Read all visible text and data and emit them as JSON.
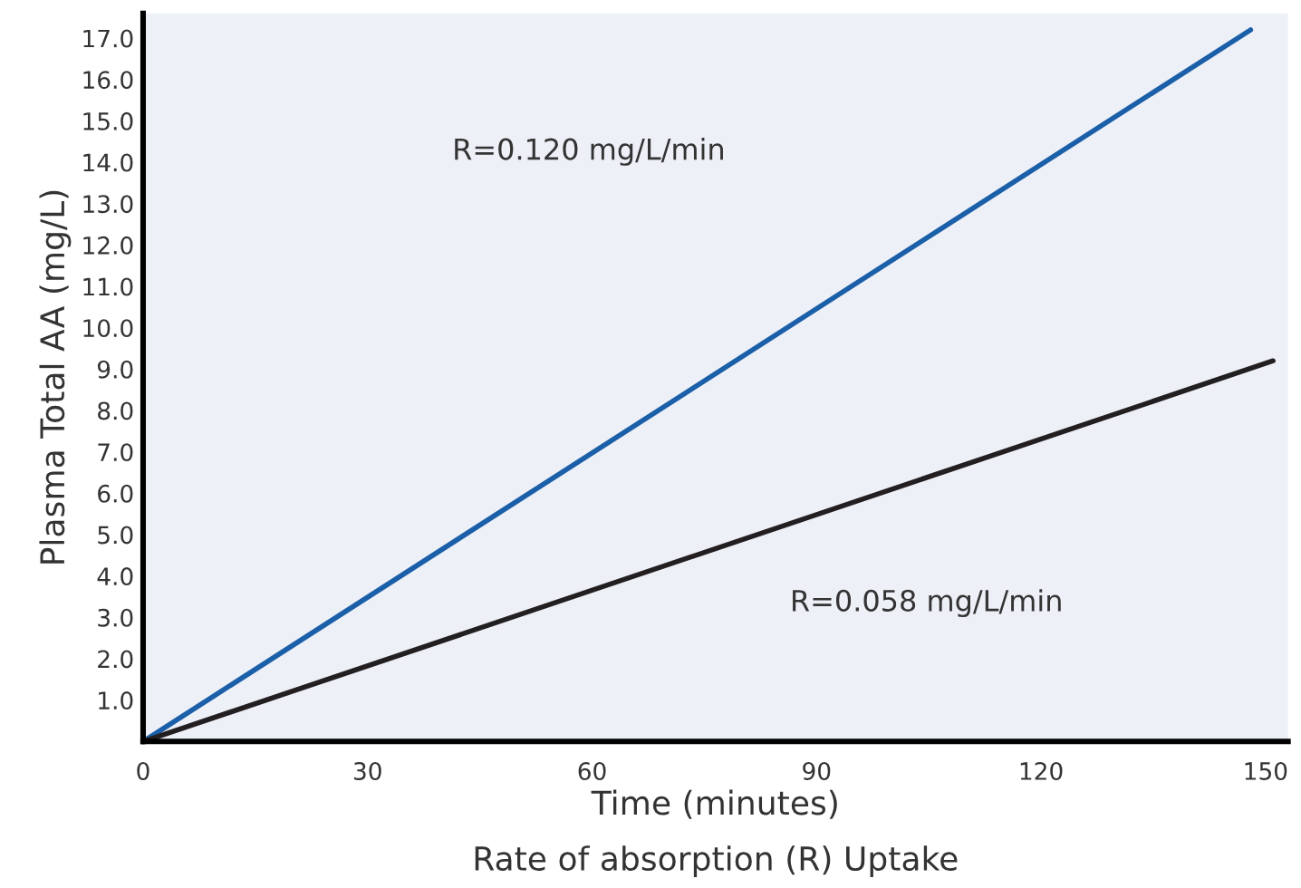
{
  "chart_data": {
    "type": "line",
    "xlabel": "Time (minutes)",
    "ylabel": "Plasma Total AA (mg/L)",
    "series": [
      {
        "x": [
          0,
          148
        ],
        "values": [
          0,
          17.2
        ],
        "color": "#1a5fa8"
      },
      {
        "x": [
          0,
          151
        ],
        "values": [
          0,
          9.2
        ],
        "color": "#231f20"
      }
    ],
    "annotations": [
      "R=0.120 mg/L/min",
      "R=0.058 mg/L/min",
      "Rate of absorption (R) Uptake"
    ],
    "xlim": [
      0,
      153
    ],
    "ylim": [
      0,
      17.6
    ],
    "xticks": [
      0,
      30,
      60,
      90,
      120,
      150
    ],
    "yticks": [
      {
        "value": 1,
        "label": "1.0"
      },
      {
        "value": 2,
        "label": "2.0"
      },
      {
        "value": 3,
        "label": "3.0"
      },
      {
        "value": 4,
        "label": "4.0"
      },
      {
        "value": 5,
        "label": "5.0"
      },
      {
        "value": 6,
        "label": "6.0"
      },
      {
        "value": 7,
        "label": "7.0"
      },
      {
        "value": 8,
        "label": "8.0"
      },
      {
        "value": 9,
        "label": "9.0"
      },
      {
        "value": 10,
        "label": "10.0"
      },
      {
        "value": 11,
        "label": "11.0"
      },
      {
        "value": 12,
        "label": "12.0"
      },
      {
        "value": 13,
        "label": "13.0"
      },
      {
        "value": 14,
        "label": "14.0"
      },
      {
        "value": 15,
        "label": "15.0"
      },
      {
        "value": 16,
        "label": "16.0"
      },
      {
        "value": 17,
        "label": "17.0"
      }
    ],
    "grid": false,
    "marker": "none",
    "line_style": "solid"
  }
}
